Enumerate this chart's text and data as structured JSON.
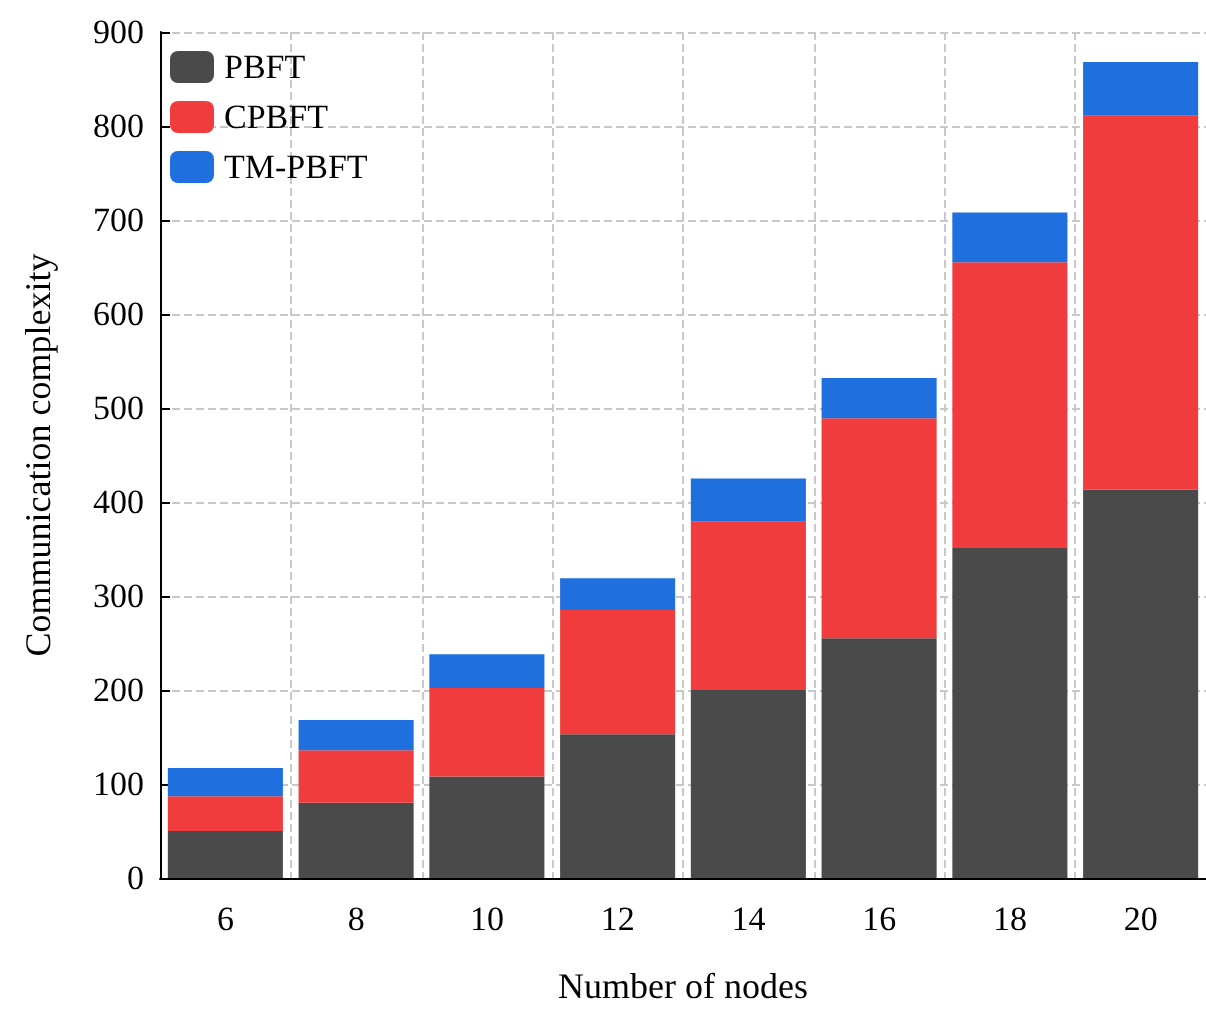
{
  "chart_data": {
    "type": "bar",
    "xlabel": "Number of nodes",
    "ylabel": "Communication complexity",
    "categories": [
      "6",
      "8",
      "10",
      "12",
      "14",
      "16",
      "18",
      "20"
    ],
    "stacked": true,
    "series": [
      {
        "name": "PBFT",
        "color": "#4a4a4a",
        "values": [
          50,
          80,
          108,
          153,
          200,
          255,
          351,
          413
        ]
      },
      {
        "name": "CPBFT",
        "color": "#f03c3c",
        "values": [
          37,
          56,
          94,
          132,
          179,
          234,
          304,
          398
        ]
      },
      {
        "name": "TM-PBFT",
        "color": "#1f6fdf",
        "values": [
          30,
          32,
          36,
          34,
          46,
          43,
          53,
          57
        ]
      }
    ],
    "ylim": [
      0,
      900
    ],
    "yticks": [
      0,
      100,
      200,
      300,
      400,
      500,
      600,
      700,
      800,
      900
    ],
    "grid": true,
    "legend": "top left"
  }
}
